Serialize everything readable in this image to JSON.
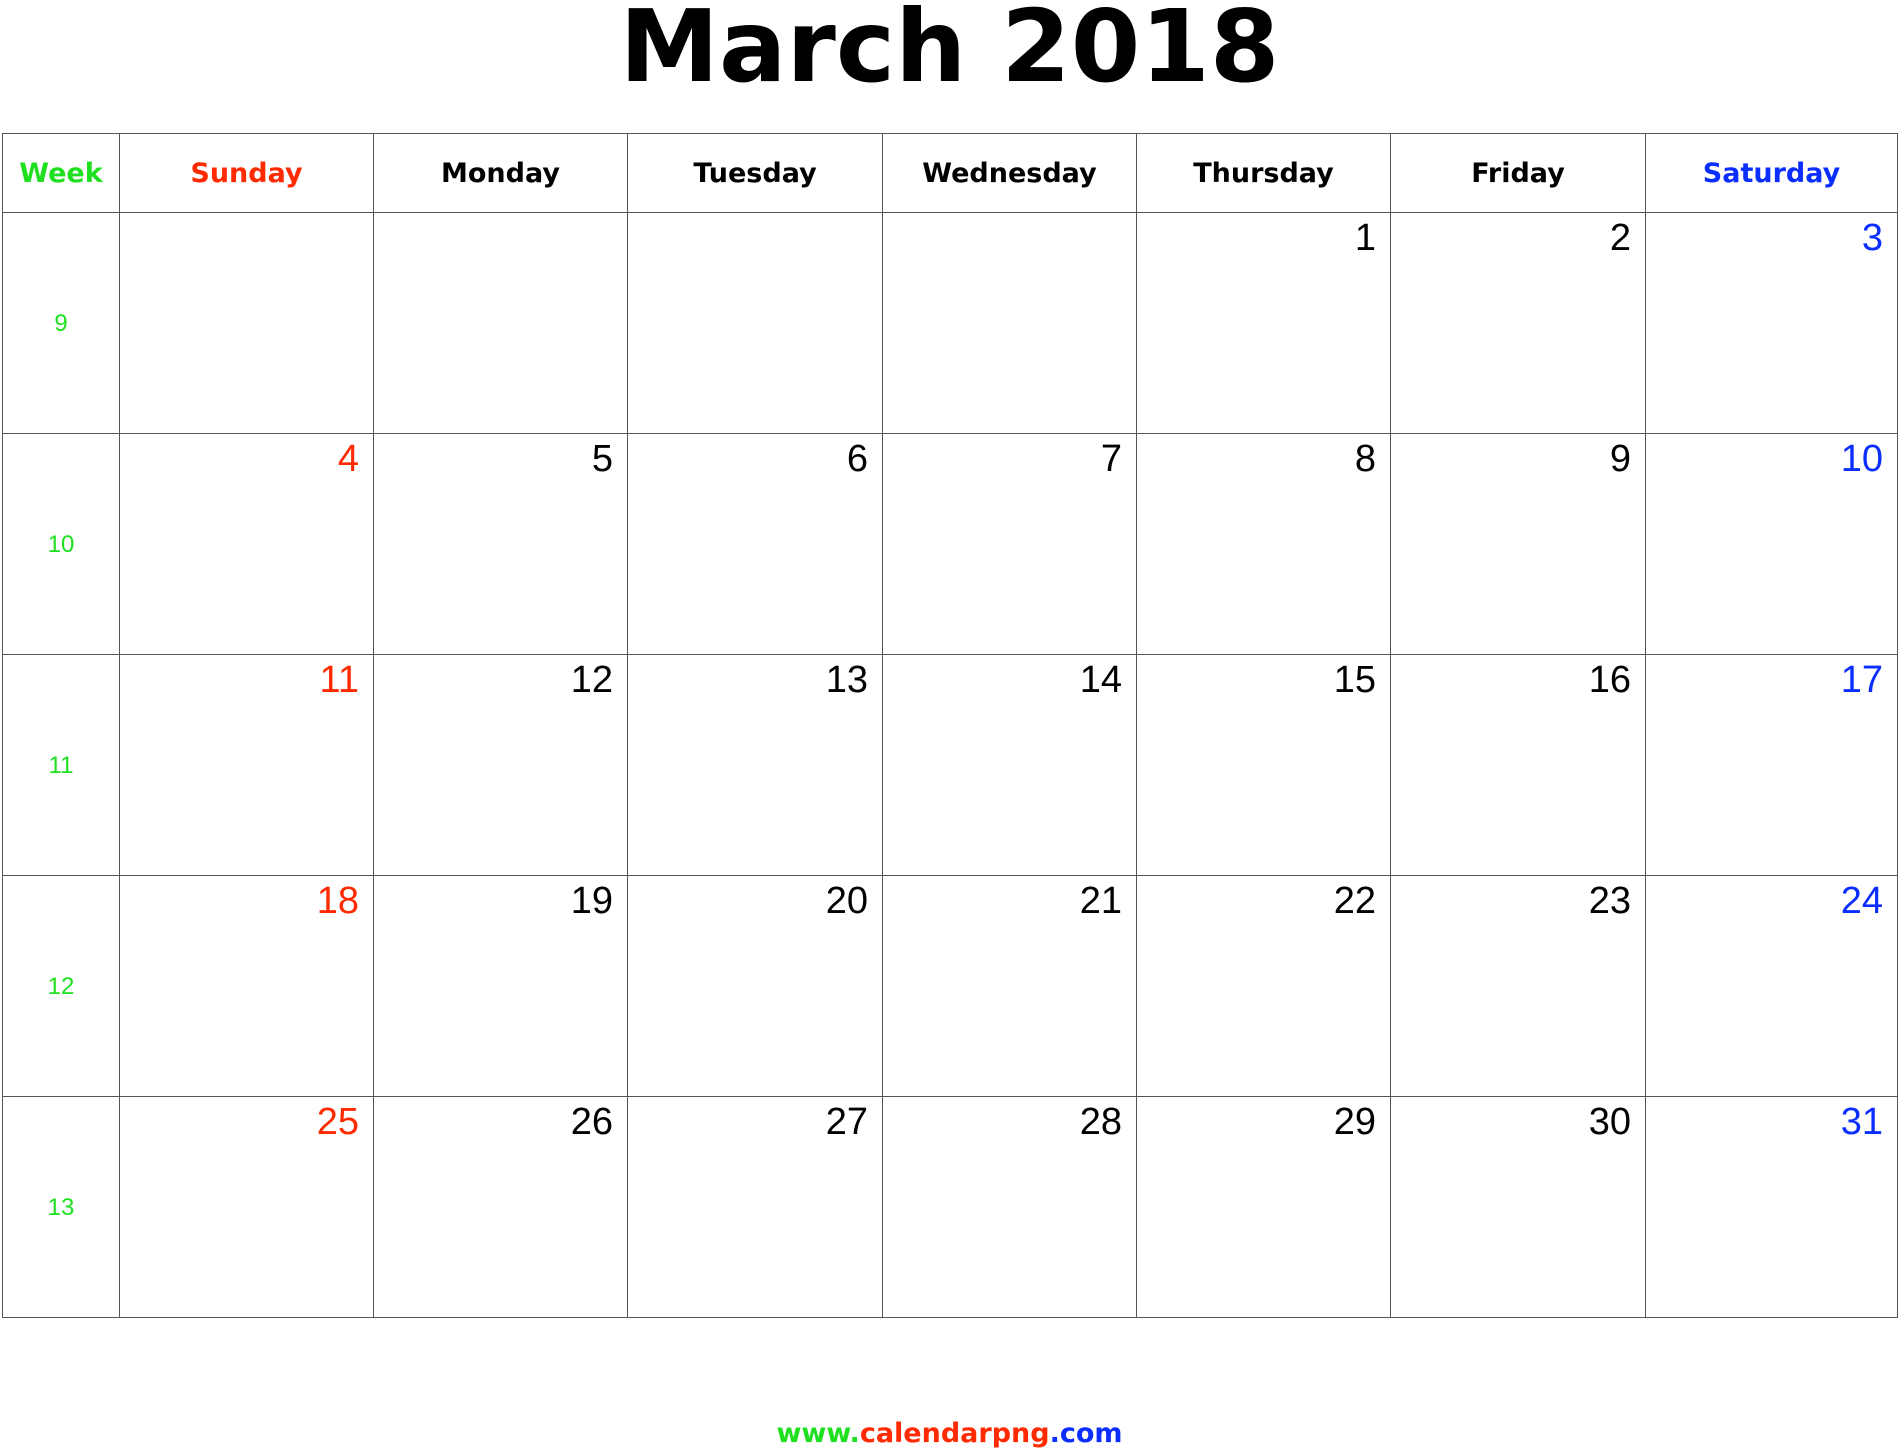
{
  "title": "March 2018",
  "table": {
    "header": [
      "Week",
      "Sunday",
      "Monday",
      "Tuesday",
      "Wednesday",
      "Thursday",
      "Friday",
      "Saturday"
    ],
    "rows": [
      {
        "week": 9,
        "days": [
          null,
          null,
          null,
          null,
          1,
          2,
          3
        ]
      },
      {
        "week": 10,
        "days": [
          4,
          5,
          6,
          7,
          8,
          9,
          10
        ]
      },
      {
        "week": 11,
        "days": [
          11,
          12,
          13,
          14,
          15,
          16,
          17
        ]
      },
      {
        "week": 12,
        "days": [
          18,
          19,
          20,
          21,
          22,
          23,
          24
        ]
      },
      {
        "week": 13,
        "days": [
          25,
          26,
          27,
          28,
          29,
          30,
          31
        ]
      }
    ]
  },
  "footer": [
    "www.",
    "calendarpng",
    ".com"
  ]
}
